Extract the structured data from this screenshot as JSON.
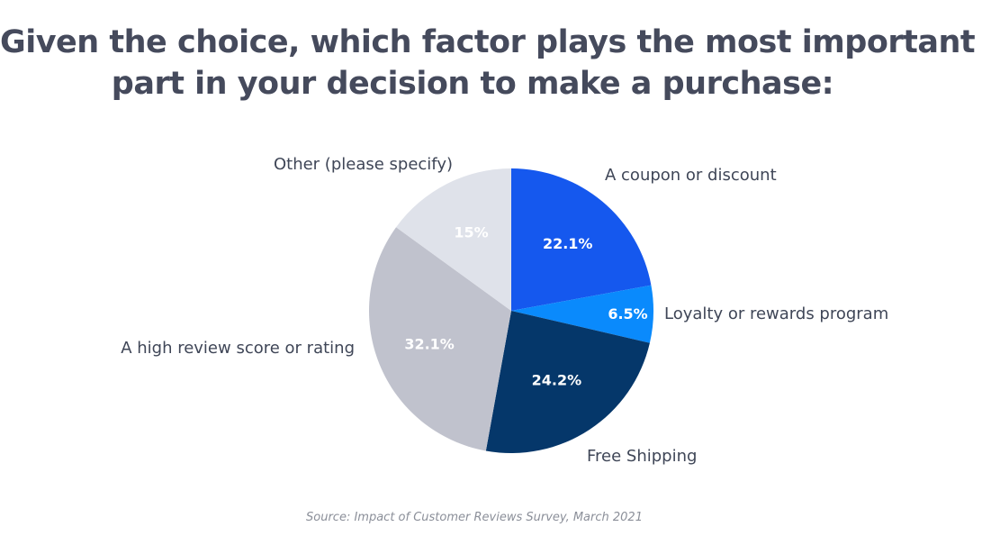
{
  "chart_data": {
    "type": "pie",
    "title": "Given the choice, which factor plays the most important part in your decision to make a purchase:",
    "title_lines": [
      "Given the choice, which factor plays the most important",
      "part in your decision to make a purchase:"
    ],
    "slices": [
      {
        "label": "A coupon or discount",
        "value": 22.1,
        "value_label": "22.1%",
        "color": "#1558ee",
        "value_text_color": "#ffffff"
      },
      {
        "label": "Loyalty or rewards program",
        "value": 6.5,
        "value_label": "6.5%",
        "color": "#0a8afc",
        "value_text_color": "#ffffff"
      },
      {
        "label": "Free Shipping",
        "value": 24.2,
        "value_label": "24.2%",
        "color": "#05376a",
        "value_text_color": "#ffffff"
      },
      {
        "label": "A high review score or rating",
        "value": 32.1,
        "value_label": "32.1%",
        "color": "#c0c2cd",
        "value_text_color": "#ffffff"
      },
      {
        "label": "Other (please specify)",
        "value": 15,
        "value_label": "15%",
        "color": "#dfe2ea",
        "value_text_color": "#ffffff"
      }
    ],
    "start_angle": "12 o'clock",
    "direction": "clockwise",
    "legend": "none (labels outside slices)",
    "source": "Source: Impact of Customer Reviews Survey, March 2021"
  }
}
